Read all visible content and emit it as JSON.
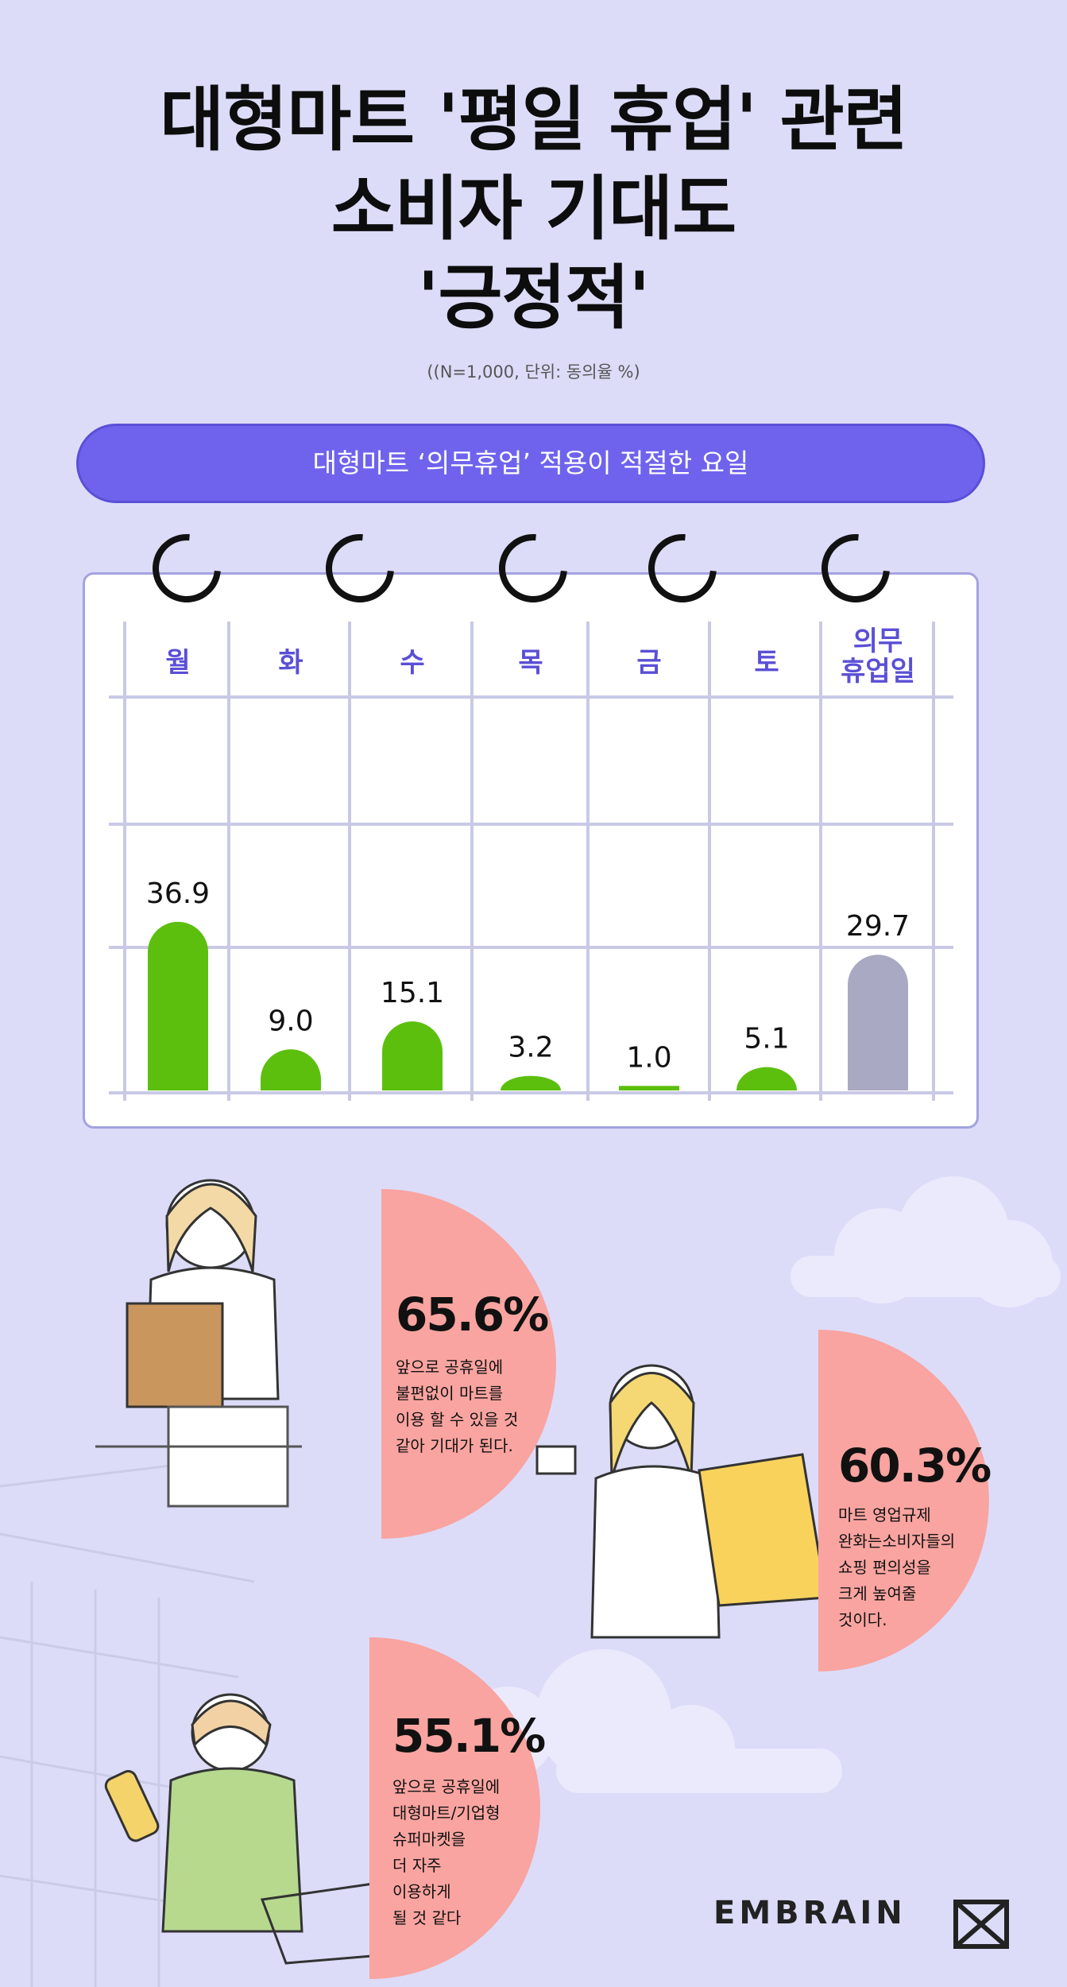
{
  "title_lines": [
    "대형마트 '평일 휴업' 관련",
    "소비자 기대도",
    "'긍정적'"
  ],
  "note": "((N=1,000, 단위: 동의율 %)",
  "section_label": "대형마트 ‘의무휴업’ 적용이 적절한 요일",
  "chart_data": {
    "type": "bar",
    "categories": [
      "월",
      "화",
      "수",
      "목",
      "금",
      "토",
      "의무\n휴업일"
    ],
    "values": [
      36.9,
      9.0,
      15.1,
      3.2,
      1.0,
      5.1,
      29.7
    ],
    "value_labels": [
      "36.9",
      "9.0",
      "15.1",
      "3.2",
      "1.0",
      "5.1",
      "29.7"
    ],
    "ylim": [
      0,
      40
    ],
    "bar_colors": [
      "#5cbf0e",
      "#5cbf0e",
      "#5cbf0e",
      "#5cbf0e",
      "#5cbf0e",
      "#5cbf0e",
      "#a9a9c3"
    ]
  },
  "stats": [
    {
      "pct": "65.6%",
      "lines": [
        "앞으로 공휴일에",
        "불편없이 마트를",
        "이용 할 수 있을 것",
        "같아 기대가 된다."
      ]
    },
    {
      "pct": "60.3%",
      "lines": [
        "마트 영업규제",
        "완화는소비자들의",
        "쇼핑 편의성을",
        "크게 높여줄",
        "것이다."
      ]
    },
    {
      "pct": "55.1%",
      "lines": [
        "앞으로 공휴일에",
        "대형마트/기업형",
        "슈퍼마켓을",
        "더 자주",
        "이용하게",
        "될 것 같다"
      ]
    }
  ],
  "brand": "EMBRAIN",
  "colors": {
    "background": "#dcdcf9",
    "accent": "#6f63ee",
    "bar": "#5cbf0e",
    "bar_holiday": "#a9a9c3",
    "pie": "#f9a4a0"
  }
}
